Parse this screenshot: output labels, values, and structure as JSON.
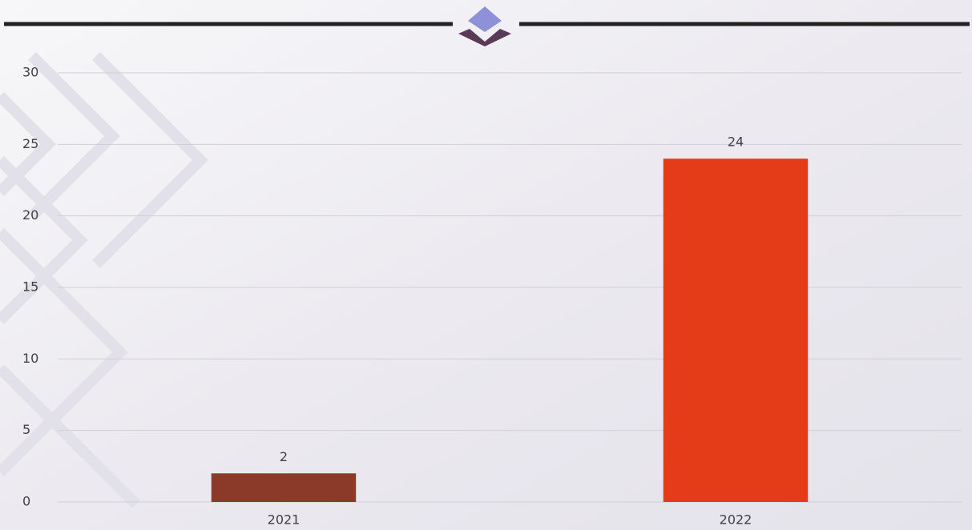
{
  "chart_data": {
    "type": "bar",
    "categories": [
      "2021",
      "2022"
    ],
    "values": [
      2,
      24
    ],
    "colors": [
      "#8b3a2a",
      "#e43b18"
    ],
    "ylim": [
      0,
      30
    ],
    "yticks": [
      0,
      5,
      10,
      15,
      20,
      25,
      30
    ],
    "grid": true
  }
}
